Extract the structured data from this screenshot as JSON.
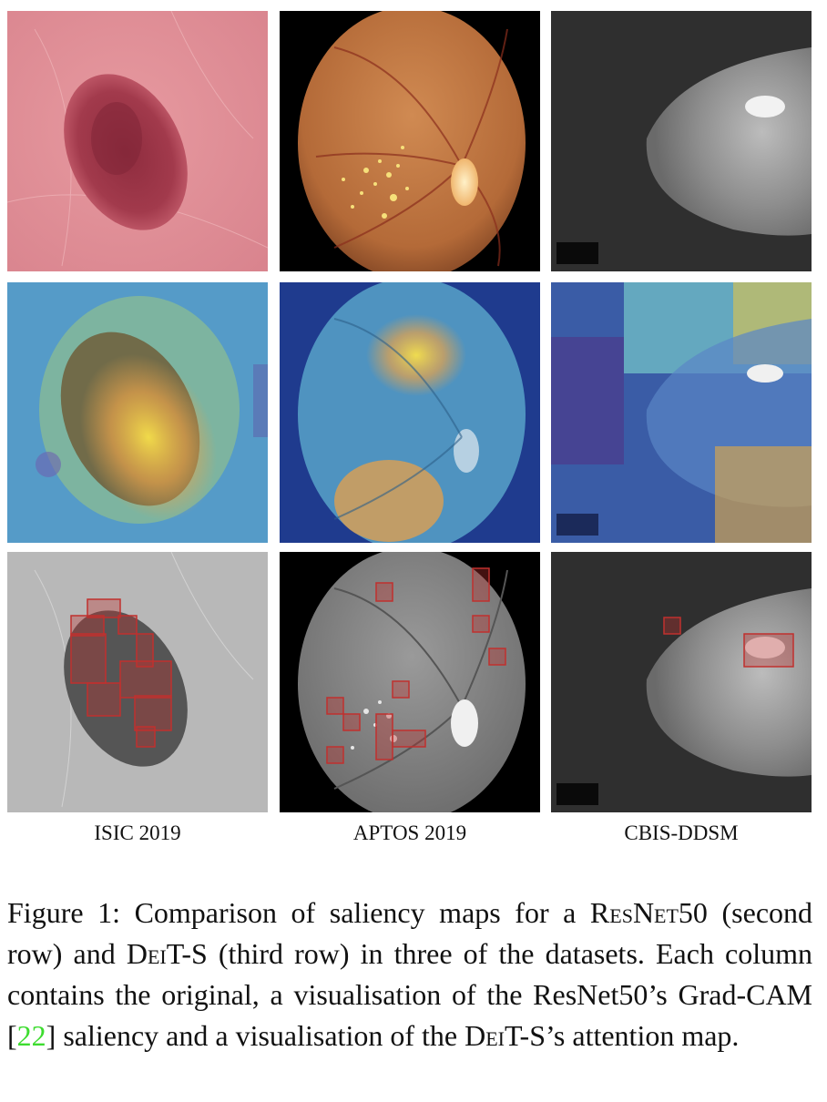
{
  "figure": {
    "columns": [
      {
        "dataset": "ISIC 2019"
      },
      {
        "dataset": "APTOS 2019"
      },
      {
        "dataset": "CBIS-DDSM"
      }
    ],
    "rows": [
      "original",
      "resnet50-gradcam",
      "deit-s-attention"
    ],
    "caption": {
      "label": "Figure 1:",
      "part1": "Comparison of saliency maps for a",
      "model1": "ResNet50",
      "part2": "(second row) and",
      "model2": "DeiT-S",
      "part3": "(third row) in three of the datasets. Each column contains the original, a visualisation of the ResNet50’s Grad-CAM",
      "citation": "22",
      "part4": "saliency and a visualisation of the",
      "model3": "DeiT-S",
      "part5": "’s attention map."
    }
  },
  "colors": {
    "citation_link": "#3ddc2f",
    "attention_box": "#c0302e"
  }
}
